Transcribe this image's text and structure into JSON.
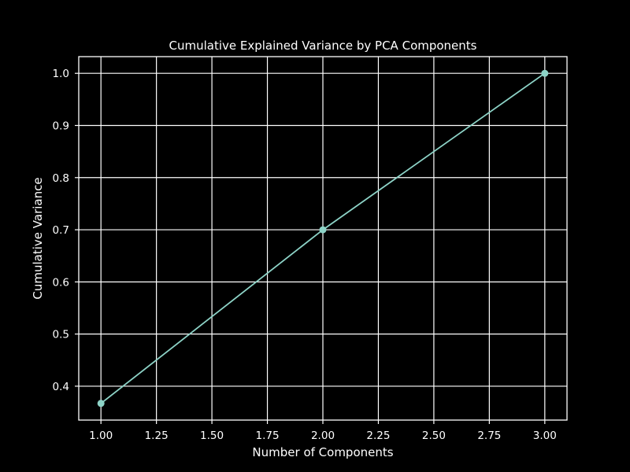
{
  "chart_data": {
    "type": "line",
    "title": "Cumulative Explained Variance by PCA Components",
    "xlabel": "Number of Components",
    "ylabel": "Cumulative Variance",
    "xlim": [
      0.9,
      3.1
    ],
    "ylim": [
      0.335,
      1.032
    ],
    "x_ticks": [
      1.0,
      1.25,
      1.5,
      1.75,
      2.0,
      2.25,
      2.5,
      2.75,
      3.0
    ],
    "x_tick_labels": [
      "1.00",
      "1.25",
      "1.50",
      "1.75",
      "2.00",
      "2.25",
      "2.50",
      "2.75",
      "3.00"
    ],
    "y_ticks": [
      0.4,
      0.5,
      0.6,
      0.7,
      0.8,
      0.9,
      1.0
    ],
    "y_tick_labels": [
      "0.4",
      "0.5",
      "0.6",
      "0.7",
      "0.8",
      "0.9",
      "1.0"
    ],
    "grid": true,
    "series": [
      {
        "x": [
          1,
          2,
          3
        ],
        "values": [
          0.367,
          0.7,
          1.0
        ],
        "marker": "circle",
        "color": "#8dd3c7"
      }
    ],
    "colors": {
      "background": "#000000",
      "axes": "#ffffff",
      "grid": "#ffffff",
      "text": "#ffffff"
    }
  }
}
